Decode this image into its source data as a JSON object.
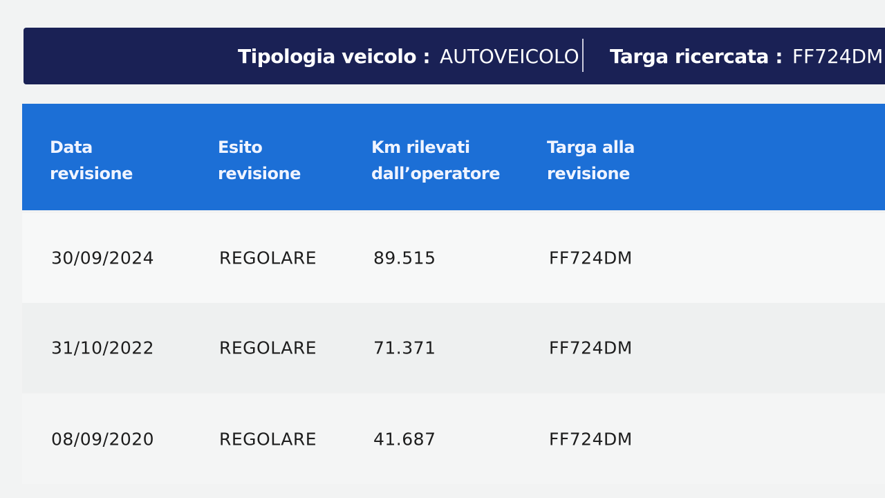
{
  "header": {
    "vehicle_type_label": "Tipologia veicolo :",
    "vehicle_type_value": "AUTOVEICOLO",
    "plate_label": "Targa ricercata :",
    "plate_value": "FF724DM"
  },
  "table": {
    "columns": [
      "Data\nrevisione",
      "Esito\nrevisione",
      "Km rilevati\ndall’operatore",
      "Targa alla\nrevisione"
    ],
    "rows": [
      [
        "30/09/2024",
        "REGOLARE",
        "89.515",
        "FF724DM"
      ],
      [
        "31/10/2022",
        "REGOLARE",
        "71.371",
        "FF724DM"
      ],
      [
        "08/09/2020",
        "REGOLARE",
        "41.687",
        "FF724DM"
      ]
    ]
  },
  "colors": {
    "header_bar": "#1a2155",
    "table_header": "#1c6fd6"
  }
}
